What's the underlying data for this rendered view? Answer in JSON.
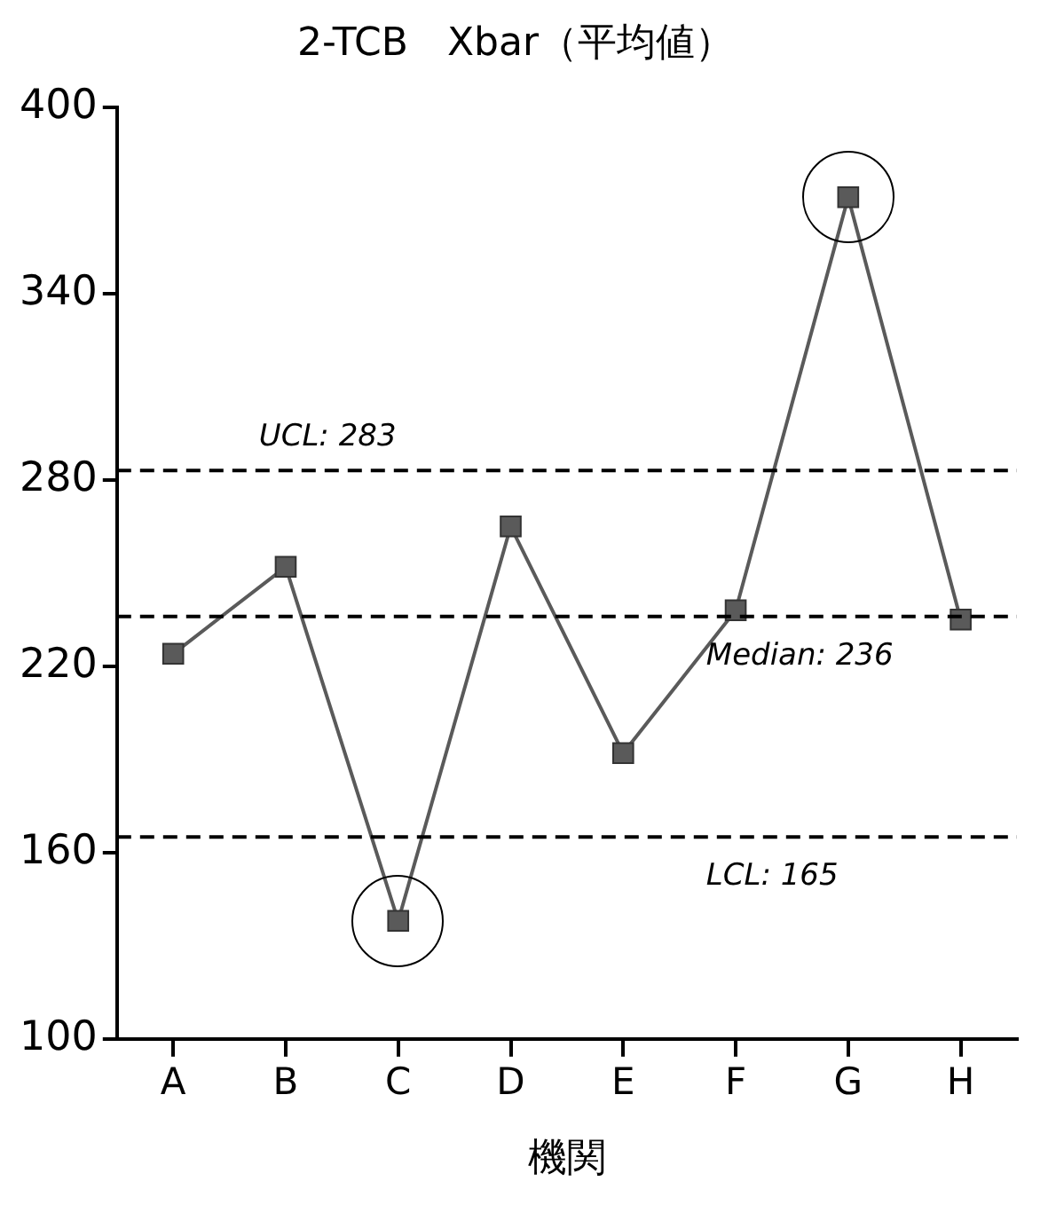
{
  "chart_data": {
    "type": "line",
    "title": "2-TCB　Xbar（平均値）",
    "xlabel": "機関",
    "categories": [
      "A",
      "B",
      "C",
      "D",
      "E",
      "F",
      "G",
      "H"
    ],
    "series": [
      {
        "color": "#5a5a5a",
        "values": [
          224,
          252,
          138,
          265,
          192,
          238,
          371,
          235
        ]
      }
    ],
    "ylim": [
      100,
      400
    ],
    "yticks": [
      100,
      160,
      220,
      280,
      340,
      400
    ],
    "grid": false,
    "legend": false,
    "marker": "square",
    "line_style": "solid",
    "ref_lines": [
      {
        "axis": "y",
        "value": 283,
        "label": "UCL: 283",
        "line_style": "dashed",
        "color": "#000000"
      },
      {
        "axis": "y",
        "value": 236,
        "label": "Median: 236",
        "line_style": "dashed",
        "color": "#000000"
      },
      {
        "axis": "y",
        "value": 165,
        "label": "LCL: 165",
        "line_style": "dashed",
        "color": "#000000"
      }
    ]
  }
}
